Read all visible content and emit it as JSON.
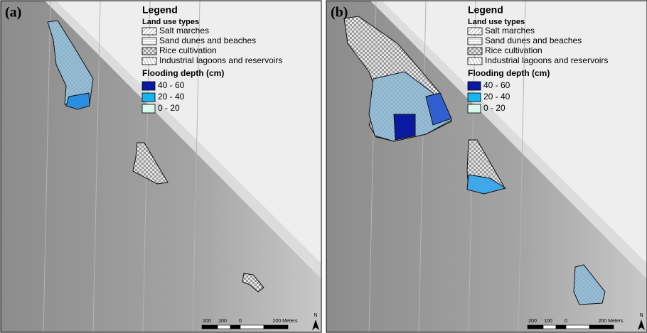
{
  "panels": [
    {
      "label": "(a)",
      "legend": {
        "title": "Legend",
        "land_use_title": "Land use types",
        "land_use_types": [
          "Salt marches",
          "Sand dunes and beaches",
          "Rice cultivation",
          "Industrial lagoons and reservoirs"
        ],
        "flooding_title": "Flooding depth (cm)",
        "flooding_classes": [
          "40 - 60",
          "20 - 40",
          "0 - 20"
        ]
      },
      "scale_bar": {
        "labels": [
          "200",
          "100",
          "0",
          "200 Meters"
        ]
      },
      "north": "N"
    },
    {
      "label": "(b)",
      "legend": {
        "title": "Legend",
        "land_use_title": "Land use types",
        "land_use_types": [
          "Salt marches",
          "Sand dunes and beaches",
          "Rice cultivation",
          "Industrial lagoons and reservoirs"
        ],
        "flooding_title": "Flooding depth (cm)",
        "flooding_classes": [
          "40 - 60",
          "20 - 40",
          "0 - 20"
        ]
      },
      "scale_bar": {
        "labels": [
          "200",
          "100",
          "0",
          "200 Meters"
        ]
      },
      "north": "N"
    }
  ]
}
